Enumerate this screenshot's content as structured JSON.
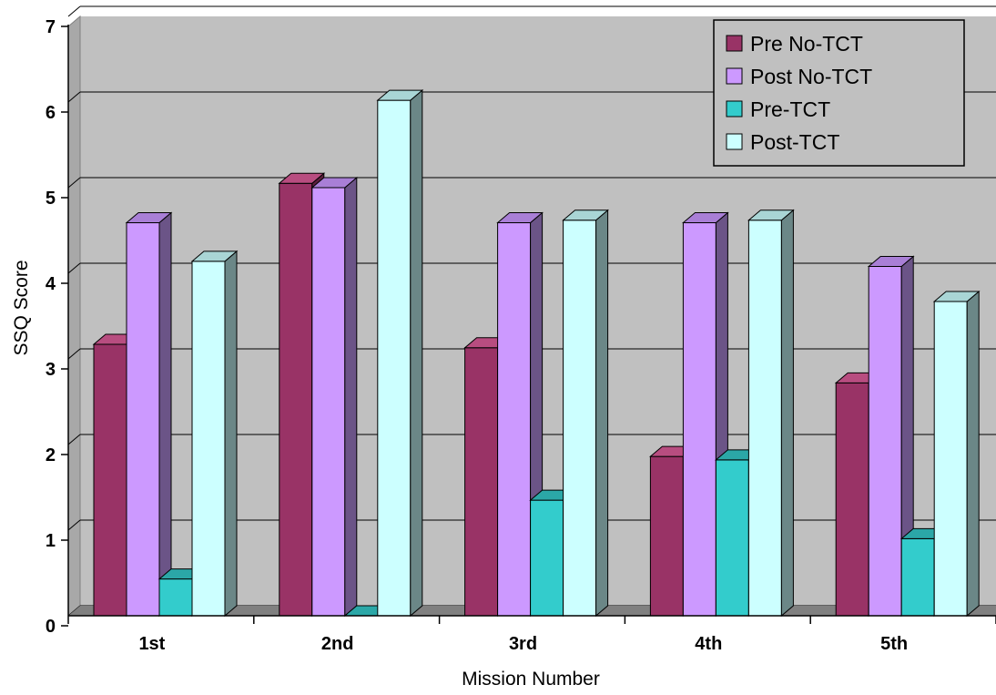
{
  "chart_data": {
    "type": "bar",
    "title": "",
    "xlabel": "Mission Number",
    "ylabel": "SSQ Score",
    "ylim": [
      0,
      7
    ],
    "yticks": [
      "0",
      "1",
      "2",
      "3",
      "4",
      "5",
      "6",
      "7"
    ],
    "categories": [
      "1st",
      "2nd",
      "3rd",
      "4th",
      "5th"
    ],
    "series": [
      {
        "name": "Pre No-TCT",
        "values": [
          3.17,
          5.05,
          3.13,
          1.86,
          2.72
        ]
      },
      {
        "name": "Post No-TCT",
        "values": [
          4.59,
          5.0,
          4.59,
          4.59,
          4.08
        ]
      },
      {
        "name": "Pre-TCT",
        "values": [
          0.43,
          0.0,
          1.35,
          1.82,
          0.9
        ]
      },
      {
        "name": "Post-TCT",
        "values": [
          4.14,
          6.02,
          4.62,
          4.62,
          3.67
        ]
      }
    ],
    "colors": {
      "series_fill": [
        "#993366",
        "#cc99ff",
        "#33cccc",
        "#ccffff"
      ],
      "series_top": [
        "#b84d80",
        "#a97fd6",
        "#2ba7a7",
        "#a9d5d5"
      ],
      "series_side": [
        "#5c1f3d",
        "#6b5487",
        "#1d7a7a",
        "#6b8787"
      ],
      "wall": "#c0c0c0",
      "floor": "#808080",
      "legend_bg": "#c0c0c0"
    },
    "grid": true,
    "legend_position": "top-right"
  }
}
